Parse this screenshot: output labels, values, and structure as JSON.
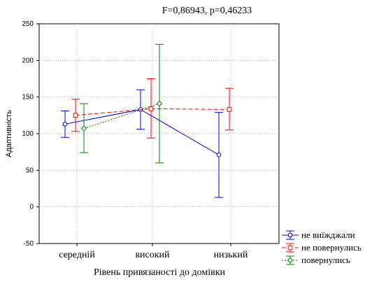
{
  "chart_data": {
    "type": "line",
    "title": "F=0,86943, p=0,46233",
    "xlabel": "Рівень привязаності до домівки",
    "ylabel": "Адаптивність",
    "categories": [
      "середній",
      "високий",
      "низький"
    ],
    "ylim": [
      -50,
      250
    ],
    "yticks": [
      -50,
      0,
      50,
      100,
      150,
      200,
      250
    ],
    "grid": true,
    "legend_position": "bottom-right",
    "series": [
      {
        "name": "не виїжджали",
        "color": "#0000ff",
        "line_style": "solid",
        "marker": "circle",
        "values": [
          113,
          133,
          71
        ],
        "error_low": [
          95,
          106,
          13
        ],
        "error_high": [
          131,
          160,
          129
        ]
      },
      {
        "name": "не повернулись",
        "color": "#ff0000",
        "line_style": "dashed",
        "marker": "square",
        "values": [
          125,
          134,
          133
        ],
        "error_low": [
          103,
          94,
          105
        ],
        "error_high": [
          147,
          175,
          162
        ]
      },
      {
        "name": "повернулись",
        "color": "#008000",
        "line_style": "dotted",
        "marker": "diamond",
        "values": [
          107,
          141,
          null
        ],
        "error_low": [
          74,
          60,
          null
        ],
        "error_high": [
          141,
          222,
          null
        ]
      }
    ]
  }
}
